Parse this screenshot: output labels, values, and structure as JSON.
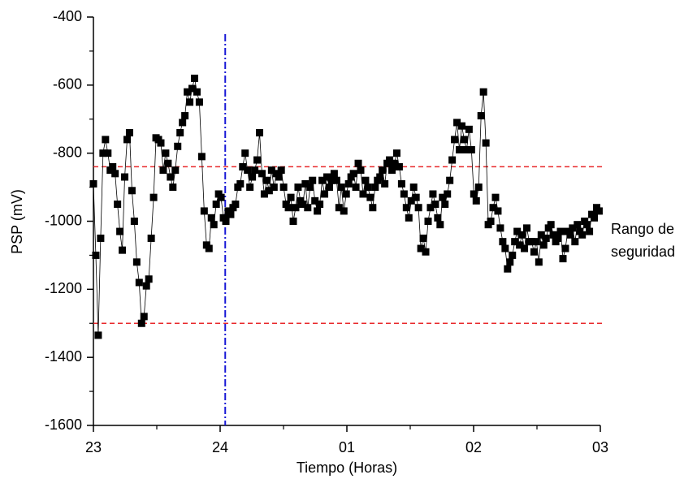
{
  "chart_data": {
    "type": "line",
    "xlabel": "Tiempo (Horas)",
    "ylabel": "PSP (mV)",
    "annotation": [
      "Rango de",
      "seguridad"
    ],
    "xlim": [
      0,
      4
    ],
    "xticks": [
      {
        "value": 0,
        "label": "23"
      },
      {
        "value": 1,
        "label": "24"
      },
      {
        "value": 2,
        "label": "01"
      },
      {
        "value": 3,
        "label": "02"
      },
      {
        "value": 4,
        "label": "03"
      }
    ],
    "xminorticks": [
      0.5,
      1.5,
      2.5,
      3.5
    ],
    "ylim": [
      -1600,
      -400
    ],
    "yticks": [
      -1600,
      -1400,
      -1200,
      -1000,
      -800,
      -600,
      -400
    ],
    "yminorticks": [
      -1500,
      -1300,
      -1100,
      -900,
      -700,
      -500
    ],
    "grid": false,
    "hlines": [
      -840,
      -1300
    ],
    "hline_color": "#e8282b",
    "vline": 1.04,
    "vline_color": "#1a1ad6",
    "x": [
      0,
      0.019,
      0.038,
      0.057,
      0.076,
      0.095,
      0.114,
      0.133,
      0.152,
      0.171,
      0.19,
      0.209,
      0.228,
      0.247,
      0.266,
      0.285,
      0.304,
      0.323,
      0.342,
      0.361,
      0.38,
      0.399,
      0.418,
      0.437,
      0.456,
      0.475,
      0.494,
      0.513,
      0.532,
      0.551,
      0.57,
      0.589,
      0.608,
      0.627,
      0.646,
      0.665,
      0.684,
      0.703,
      0.722,
      0.741,
      0.76,
      0.779,
      0.798,
      0.817,
      0.836,
      0.855,
      0.874,
      0.893,
      0.912,
      0.931,
      0.95,
      0.969,
      0.988,
      1.007,
      1.026,
      1.045,
      1.064,
      1.083,
      1.102,
      1.121,
      1.14,
      1.159,
      1.178,
      1.197,
      1.216,
      1.235,
      1.254,
      1.273,
      1.292,
      1.311,
      1.33,
      1.349,
      1.368,
      1.387,
      1.406,
      1.425,
      1.444,
      1.463,
      1.482,
      1.501,
      1.52,
      1.539,
      1.558,
      1.577,
      1.596,
      1.615,
      1.634,
      1.653,
      1.672,
      1.691,
      1.71,
      1.729,
      1.748,
      1.767,
      1.786,
      1.805,
      1.824,
      1.843,
      1.862,
      1.881,
      1.9,
      1.919,
      1.938,
      1.957,
      1.976,
      1.995,
      2.014,
      2.033,
      2.052,
      2.071,
      2.09,
      2.109,
      2.128,
      2.147,
      2.166,
      2.185,
      2.204,
      2.223,
      2.242,
      2.261,
      2.28,
      2.299,
      2.318,
      2.337,
      2.356,
      2.375,
      2.394,
      2.413,
      2.432,
      2.451,
      2.47,
      2.489,
      2.508,
      2.527,
      2.546,
      2.565,
      2.584,
      2.603,
      2.622,
      2.641,
      2.66,
      2.679,
      2.698,
      2.717,
      2.736,
      2.755,
      2.774,
      2.793,
      2.812,
      2.831,
      2.85,
      2.869,
      2.888,
      2.907,
      2.926,
      2.945,
      2.964,
      2.983,
      3.002,
      3.021,
      3.04,
      3.059,
      3.078,
      3.097,
      3.116,
      3.135,
      3.154,
      3.173,
      3.192,
      3.211,
      3.23,
      3.249,
      3.268,
      3.287,
      3.306,
      3.325,
      3.344,
      3.363,
      3.382,
      3.401,
      3.42,
      3.439,
      3.458,
      3.477,
      3.496,
      3.515,
      3.534,
      3.553,
      3.572,
      3.591,
      3.61,
      3.629,
      3.648,
      3.667,
      3.686,
      3.705,
      3.724,
      3.743,
      3.762,
      3.781,
      3.8,
      3.819,
      3.838,
      3.857,
      3.876,
      3.895,
      3.914,
      3.933,
      3.952,
      3.971,
      3.99
    ],
    "series": [
      {
        "color": "#000000",
        "values": [
          -890,
          -1100,
          -1335,
          -1050,
          -800,
          -760,
          -800,
          -850,
          -840,
          -860,
          -950,
          -1030,
          -1085,
          -870,
          -760,
          -740,
          -910,
          -1000,
          -1120,
          -1180,
          -1300,
          -1280,
          -1190,
          -1170,
          -1050,
          -930,
          -755,
          -760,
          -770,
          -850,
          -800,
          -830,
          -870,
          -900,
          -850,
          -780,
          -740,
          -710,
          -690,
          -620,
          -650,
          -610,
          -580,
          -620,
          -650,
          -810,
          -970,
          -1070,
          -1080,
          -990,
          -1010,
          -950,
          -920,
          -930,
          -990,
          -1000,
          -970,
          -980,
          -960,
          -950,
          -900,
          -890,
          -840,
          -800,
          -850,
          -900,
          -870,
          -850,
          -820,
          -740,
          -860,
          -920,
          -880,
          -910,
          -850,
          -900,
          -860,
          -870,
          -850,
          -900,
          -950,
          -960,
          -930,
          -1000,
          -960,
          -900,
          -940,
          -950,
          -890,
          -960,
          -900,
          -880,
          -940,
          -970,
          -950,
          -880,
          -920,
          -870,
          -900,
          -880,
          -860,
          -880,
          -960,
          -900,
          -970,
          -920,
          -890,
          -870,
          -860,
          -900,
          -830,
          -850,
          -920,
          -880,
          -900,
          -930,
          -960,
          -900,
          -880,
          -870,
          -850,
          -890,
          -830,
          -820,
          -850,
          -830,
          -800,
          -840,
          -890,
          -920,
          -960,
          -990,
          -940,
          -900,
          -930,
          -960,
          -1080,
          -1050,
          -1090,
          -1000,
          -960,
          -920,
          -950,
          -990,
          -1010,
          -930,
          -950,
          -920,
          -880,
          -820,
          -760,
          -710,
          -790,
          -720,
          -760,
          -790,
          -730,
          -790,
          -920,
          -940,
          -900,
          -690,
          -620,
          -770,
          -1010,
          -1000,
          -960,
          -930,
          -970,
          -1020,
          -1060,
          -1080,
          -1140,
          -1120,
          -1100,
          -1060,
          -1030,
          -1070,
          -1040,
          -1080,
          -1020,
          -1060,
          -1060,
          -1090,
          -1060,
          -1120,
          -1040,
          -1070,
          -1050,
          -1020,
          -1010,
          -1040,
          -1060,
          -1050,
          -1030,
          -1110,
          -1080,
          -1030,
          -1040,
          -1020,
          -1060,
          -1010,
          -1030,
          -1040,
          -1000,
          -1010,
          -1030,
          -980,
          -990,
          -960,
          -970
        ]
      }
    ]
  }
}
